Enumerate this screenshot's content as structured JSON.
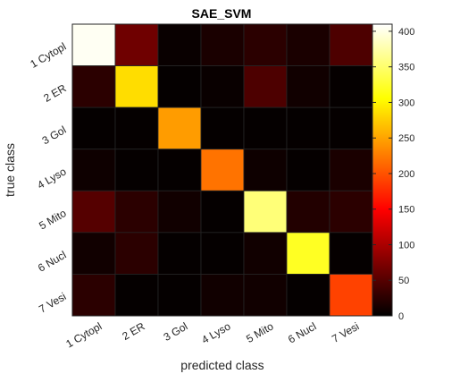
{
  "chart_data": {
    "type": "heatmap",
    "title": "SAE_SVM",
    "xlabel": "predicted class",
    "ylabel": "true class",
    "x_categories": [
      "1 Cytopl",
      "2 ER",
      "3 Gol",
      "4 Lyso",
      "5 Mito",
      "6 Nucl",
      "7 Vesi"
    ],
    "y_categories": [
      "1 Cytopl",
      "2 ER",
      "3 Gol",
      "4 Lyso",
      "5 Mito",
      "6 Nucl",
      "7 Vesi"
    ],
    "values": [
      [
        405,
        65,
        5,
        15,
        25,
        15,
        45
      ],
      [
        25,
        285,
        3,
        5,
        45,
        10,
        3
      ],
      [
        3,
        3,
        245,
        3,
        3,
        3,
        3
      ],
      [
        8,
        3,
        3,
        220,
        8,
        3,
        15
      ],
      [
        50,
        25,
        10,
        3,
        355,
        20,
        25
      ],
      [
        10,
        25,
        3,
        3,
        10,
        320,
        3
      ],
      [
        25,
        3,
        3,
        10,
        10,
        3,
        190
      ]
    ],
    "color_range": [
      0,
      410
    ],
    "colormap": "hot",
    "colorbar": {
      "ticks": [
        0,
        50,
        100,
        150,
        200,
        250,
        300,
        350,
        400
      ]
    },
    "grid": true
  }
}
